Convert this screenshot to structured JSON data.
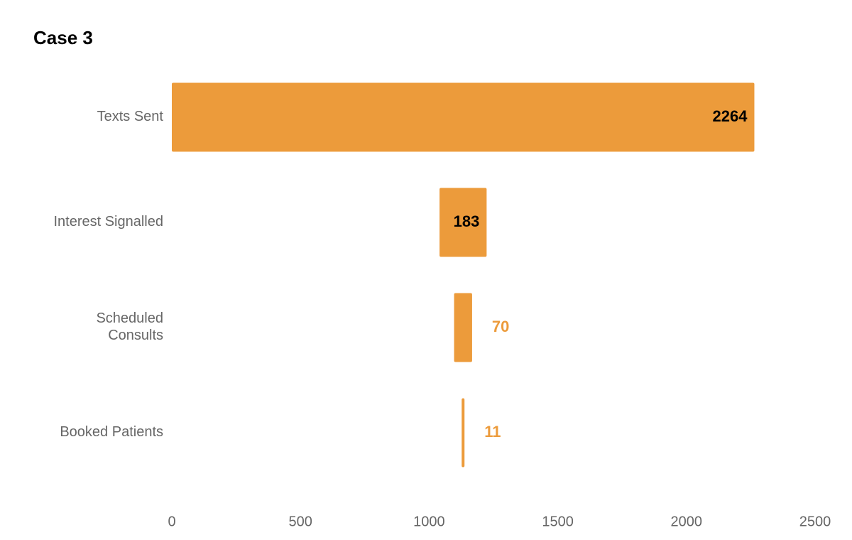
{
  "chart_data": {
    "type": "funnel",
    "title": "Case 3",
    "categories": [
      "Texts Sent",
      "Interest Signalled",
      "Scheduled\nConsults",
      "Booked Patients"
    ],
    "values": [
      2264,
      183,
      70,
      11
    ],
    "color": "#ec9b3b",
    "xlim": [
      0,
      2500
    ],
    "xticks": [
      0,
      500,
      1000,
      1500,
      2000,
      2500
    ],
    "grid": false
  }
}
